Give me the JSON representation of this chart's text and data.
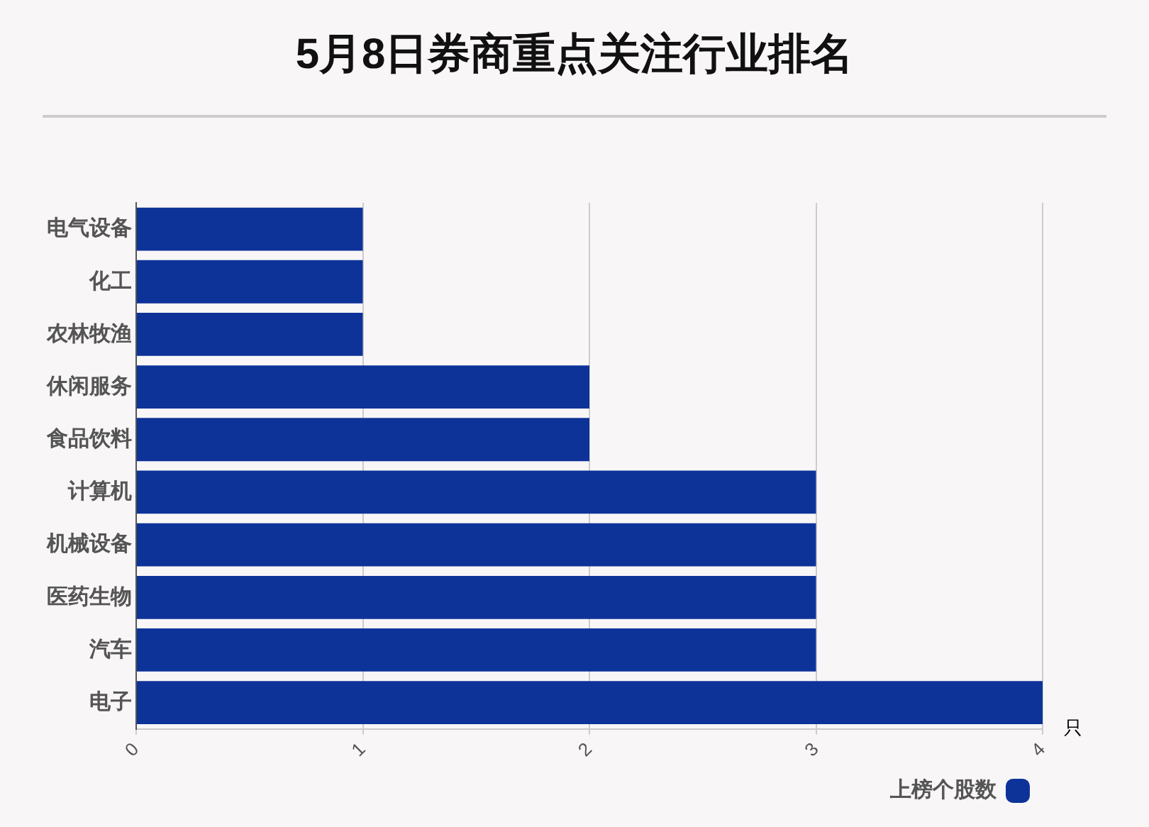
{
  "chart_data": {
    "type": "bar",
    "orientation": "horizontal",
    "title": "5月8日券商重点关注行业排名",
    "xlabel": "只",
    "categories": [
      "电气设备",
      "化工",
      "农林牧渔",
      "休闲服务",
      "食品饮料",
      "计算机",
      "机械设备",
      "医药生物",
      "汽车",
      "电子"
    ],
    "series": [
      {
        "name": "上榜个股数",
        "color": "#0d3399",
        "values": [
          1,
          1,
          1,
          2,
          2,
          3,
          3,
          3,
          3,
          4
        ]
      }
    ],
    "xlim": [
      0,
      4
    ],
    "xticks": [
      0,
      1,
      2,
      3,
      4
    ],
    "grid": "x",
    "legend": "bottom right"
  }
}
